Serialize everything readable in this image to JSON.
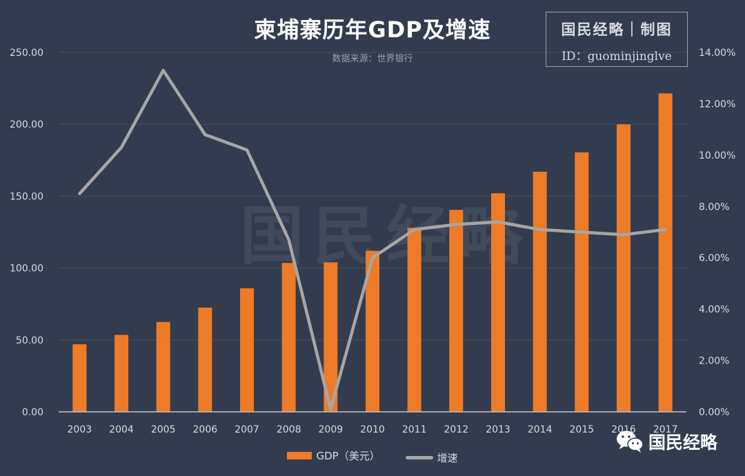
{
  "title": "柬埔寨历年GDP及增速",
  "source": "数据来源：世界银行",
  "brand": {
    "name": "国民经略｜制图",
    "id": "ID：guominjinglve"
  },
  "watermark": "国民经略",
  "wechat": {
    "label": "国民经略",
    "icon": "wechat-icon"
  },
  "colors": {
    "background": "#323c4e",
    "bar": "#ee7b27",
    "line": "#a6a6a6",
    "grid": "#47505f",
    "axis_text": "#d8dbe0"
  },
  "chart_data": {
    "type": "bar",
    "categories": [
      "2003",
      "2004",
      "2005",
      "2006",
      "2007",
      "2008",
      "2009",
      "2010",
      "2011",
      "2012",
      "2013",
      "2014",
      "2015",
      "2016",
      "2017"
    ],
    "series": [
      {
        "name": "GDP（美元）",
        "type": "bar",
        "axis": "left",
        "values": [
          47.0,
          53.5,
          62.5,
          72.5,
          86.0,
          103.5,
          104.0,
          112.0,
          128.0,
          140.5,
          152.0,
          167.0,
          180.5,
          200.0,
          221.5
        ]
      },
      {
        "name": "增速",
        "type": "line",
        "axis": "right",
        "values": [
          8.5,
          10.3,
          13.3,
          10.8,
          10.2,
          6.7,
          0.1,
          6.0,
          7.1,
          7.3,
          7.4,
          7.1,
          7.0,
          6.9,
          7.1
        ]
      }
    ],
    "y_left": {
      "min": 0,
      "max": 250,
      "ticks": [
        "0.00",
        "50.00",
        "100.00",
        "150.00",
        "200.00",
        "250.00"
      ]
    },
    "y_right": {
      "min": 0,
      "max": 14,
      "ticks": [
        "0.00%",
        "2.00%",
        "4.00%",
        "6.00%",
        "8.00%",
        "10.00%",
        "12.00%",
        "14.00%"
      ]
    },
    "grid": true,
    "legend_position": "bottom"
  }
}
